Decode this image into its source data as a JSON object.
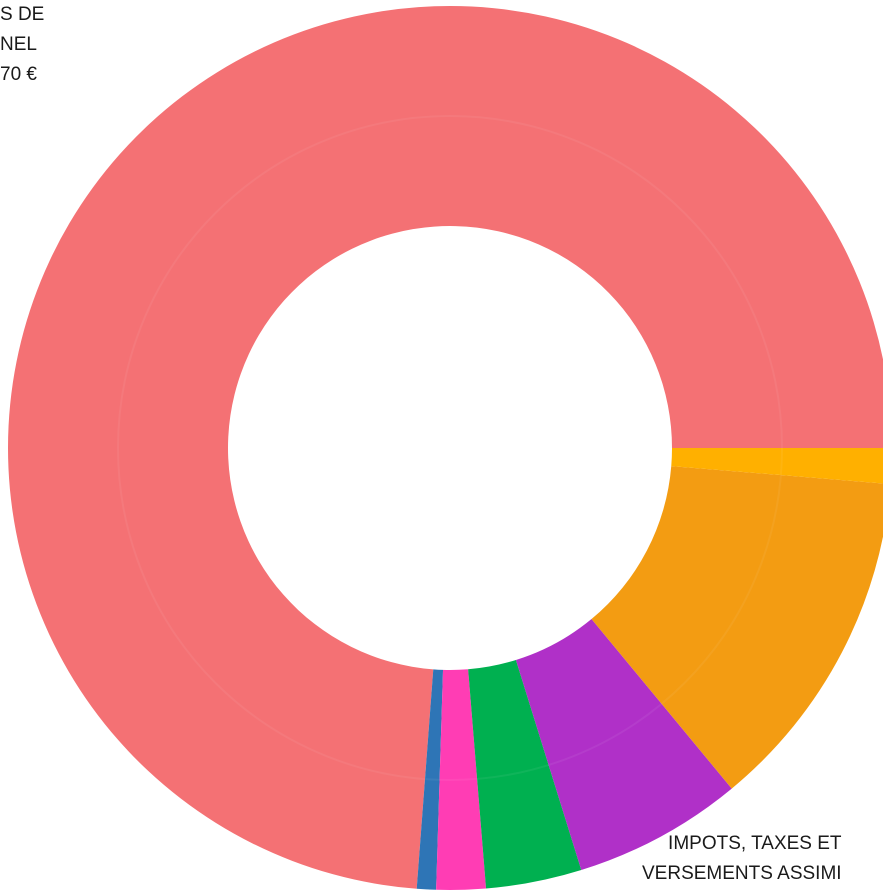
{
  "chart_data": {
    "type": "pie",
    "style": "donut",
    "start_direction": "east",
    "direction": "counterclockwise",
    "units": "percent",
    "series": [
      {
        "name": "",
        "value": 73.8,
        "color": "#F47174"
      },
      {
        "name": "",
        "value": 0.7,
        "color": "#2E75B6"
      },
      {
        "name": "",
        "value": 1.8,
        "color": "#FF3DB4"
      },
      {
        "name": "",
        "value": 3.5,
        "color": "#00B050"
      },
      {
        "name": "",
        "value": 6.2,
        "color": "#B030C8"
      },
      {
        "name": "",
        "value": 12.7,
        "color": "#F39C12"
      },
      {
        "name": "",
        "value": 1.3,
        "color": "#FFB000"
      }
    ],
    "annotations": [
      {
        "id": "top-left",
        "lines": [
          "S DE",
          "NEL",
          "70 €"
        ]
      },
      {
        "id": "bottom-right",
        "lines": [
          "IMPOTS, TAXES ET",
          "VERSEMENTS ASSIMI"
        ]
      }
    ]
  }
}
